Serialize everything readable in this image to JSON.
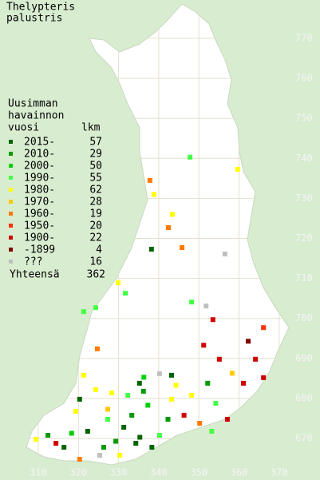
{
  "title_lines": [
    "Thelypteris",
    "palustris"
  ],
  "legend": {
    "heading_lines": [
      "Uusimman",
      "havainnon",
      "vuosi"
    ],
    "count_header": "lkm",
    "items": [
      {
        "label": "2015-",
        "count": 57,
        "color": "#006400"
      },
      {
        "label": "2010-",
        "count": 29,
        "color": "#009a00"
      },
      {
        "label": "2000-",
        "count": 50,
        "color": "#00d000"
      },
      {
        "label": "1990-",
        "count": 55,
        "color": "#44ff44"
      },
      {
        "label": "1980-",
        "count": 62,
        "color": "#ffff00"
      },
      {
        "label": "1970-",
        "count": 28,
        "color": "#ffc800"
      },
      {
        "label": "1960-",
        "count": 19,
        "color": "#ff7a00"
      },
      {
        "label": "1950-",
        "count": 20,
        "color": "#ff3000"
      },
      {
        "label": "1900-",
        "count": 22,
        "color": "#d00000"
      },
      {
        "label": "-1899",
        "count": 4,
        "color": "#800000"
      },
      {
        "label": "???",
        "count": 16,
        "color": "#c0c0c0"
      }
    ],
    "total_label": "Yhteensä",
    "total": 362
  },
  "x_ticks": [
    310,
    320,
    330,
    340,
    350,
    360,
    370
  ],
  "y_ticks": [
    670,
    680,
    690,
    700,
    710,
    720,
    730,
    740,
    750,
    760,
    770
  ],
  "points": [
    [
      347.8,
      740.3,
      3
    ],
    [
      359.7,
      737.3,
      4
    ],
    [
      337.8,
      734.5,
      6
    ],
    [
      338.8,
      731,
      4
    ],
    [
      343.4,
      726,
      4
    ],
    [
      342.4,
      722.7,
      6
    ],
    [
      345.8,
      717.7,
      6
    ],
    [
      338.2,
      717.3,
      0
    ],
    [
      356.5,
      716.1,
      10
    ],
    [
      329.9,
      708.9,
      4
    ],
    [
      331.7,
      706.3,
      3
    ],
    [
      348.2,
      704.1,
      3
    ],
    [
      351.8,
      703.1,
      10
    ],
    [
      353.5,
      699.7,
      8
    ],
    [
      366.1,
      697.7,
      7
    ],
    [
      324.7,
      692.4,
      6
    ],
    [
      351.2,
      693.3,
      8
    ],
    [
      355.1,
      689.8,
      8
    ],
    [
      364.1,
      689.8,
      8
    ],
    [
      366.1,
      685.2,
      8
    ],
    [
      361.1,
      683.8,
      8
    ],
    [
      343.2,
      685.8,
      0
    ],
    [
      340.2,
      686.2,
      10
    ],
    [
      335.2,
      683.8,
      0
    ],
    [
      336.2,
      681.8,
      1
    ],
    [
      332.3,
      680.8,
      3
    ],
    [
      328.3,
      681.4,
      4
    ],
    [
      324.3,
      682.2,
      4
    ],
    [
      321.3,
      685.8,
      4
    ],
    [
      320.3,
      679.8,
      0
    ],
    [
      319.3,
      676.8,
      4
    ],
    [
      322.3,
      671.8,
      0
    ],
    [
      312.4,
      670.8,
      1
    ],
    [
      309.4,
      669.8,
      4
    ],
    [
      316.4,
      667.8,
      0
    ],
    [
      326.3,
      667.8,
      1
    ],
    [
      330.3,
      665.8,
      4
    ],
    [
      334.3,
      668.8,
      0
    ],
    [
      338.3,
      667.8,
      0
    ],
    [
      342.3,
      674.8,
      1
    ],
    [
      346.3,
      675.8,
      8
    ],
    [
      350.2,
      673.8,
      6
    ],
    [
      353.2,
      671.8,
      3
    ],
    [
      357.1,
      674.8,
      8
    ],
    [
      354.2,
      678.8,
      3
    ],
    [
      352.2,
      683.8,
      1
    ],
    [
      331.3,
      672.8,
      0
    ],
    [
      333.3,
      675.8,
      1
    ],
    [
      327.3,
      674.8,
      3
    ],
    [
      340.2,
      670.8,
      3
    ],
    [
      343.2,
      679.8,
      4
    ],
    [
      348.2,
      680.8,
      4
    ],
    [
      325.3,
      665.8,
      10
    ],
    [
      320.3,
      664.8,
      6
    ],
    [
      314.4,
      668.8,
      8
    ],
    [
      324.3,
      702.7,
      3
    ],
    [
      321.3,
      701.7,
      3
    ],
    [
      335.3,
      670.3,
      0
    ],
    [
      329.3,
      669.3,
      1
    ],
    [
      318.3,
      671.3,
      2
    ],
    [
      337.3,
      678.3,
      2
    ],
    [
      344.3,
      683.3,
      4
    ],
    [
      358.3,
      686.3,
      5
    ],
    [
      362.3,
      694.3,
      9
    ],
    [
      327.3,
      677.3,
      5
    ],
    [
      336.3,
      685.3,
      2
    ]
  ]
}
